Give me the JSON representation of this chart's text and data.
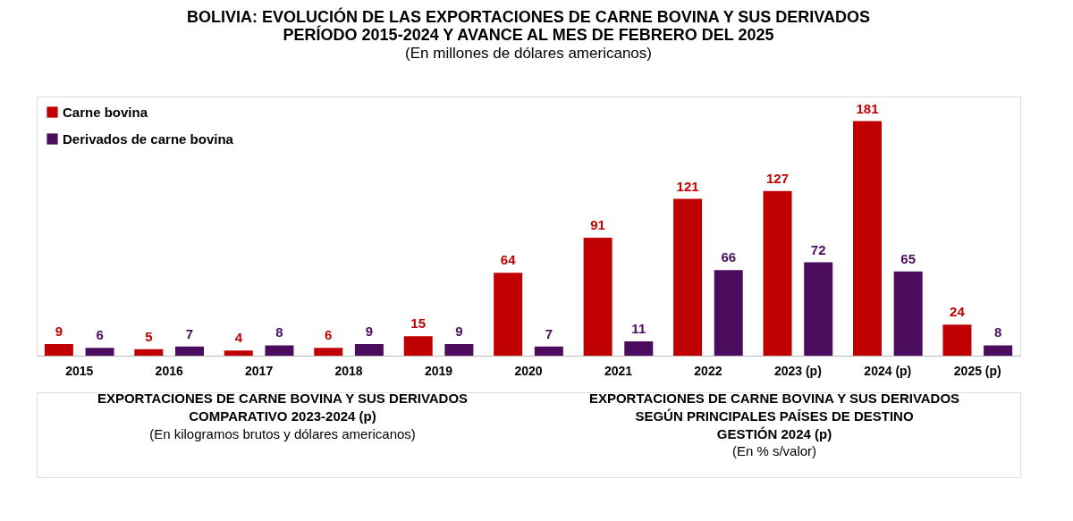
{
  "chart_data": {
    "type": "bar",
    "title": "BOLIVIA: EVOLUCIÓN DE LAS EXPORTACIONES DE CARNE BOVINA Y SUS DERIVADOS\nPERÍODO 2015-2024 Y AVANCE AL MES DE FEBRERO DEL 2025",
    "subtitle": "(En millones de dólares americanos)",
    "categories": [
      "2015",
      "2016",
      "2017",
      "2018",
      "2019",
      "2020",
      "2021",
      "2022",
      "2023 (p)",
      "2024 (p)",
      "2025 (p)"
    ],
    "series": [
      {
        "name": "Carne bovina",
        "color": "#c00000",
        "values": [
          9,
          5,
          4,
          6,
          15,
          64,
          91,
          121,
          127,
          181,
          24
        ]
      },
      {
        "name": "Derivados de carne bovina",
        "color": "#4b0c5e",
        "values": [
          6,
          7,
          8,
          9,
          9,
          7,
          11,
          66,
          72,
          65,
          8
        ]
      }
    ],
    "data_labels": true,
    "legend": "top left",
    "grid": false,
    "annotations": [
      "EXPORTACIONES DE CARNE BOVINA Y SUS DERIVADOS\nCOMPARATIVO 2023-2024 (p)\n(En kilogramos brutos y dólares americanos)",
      "EXPORTACIONES DE CARNE BOVINA Y SUS DERIVADOS\nSEGÚN PRINCIPALES PAÍSES DE DESTINO\nGESTIÓN 2024 (p)\n(En % s/valor)"
    ]
  }
}
